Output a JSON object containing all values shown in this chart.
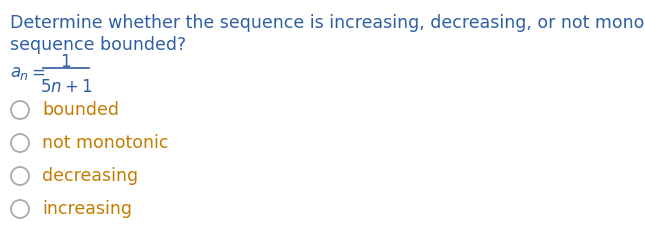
{
  "background_color": "#ffffff",
  "question_line1": "Determine whether the sequence is increasing, decreasing, or not monotonic. Is the",
  "question_line2": "sequence bounded?",
  "question_color": "#2e5fa3",
  "formula_color": "#2e5fa3",
  "options": [
    "bounded",
    "not monotonic",
    "decreasing",
    "increasing"
  ],
  "option_color": "#c47c00",
  "circle_edge_color": "#aaaaaa",
  "q_fontsize": 12.5,
  "formula_fontsize": 12,
  "option_fontsize": 12.5
}
